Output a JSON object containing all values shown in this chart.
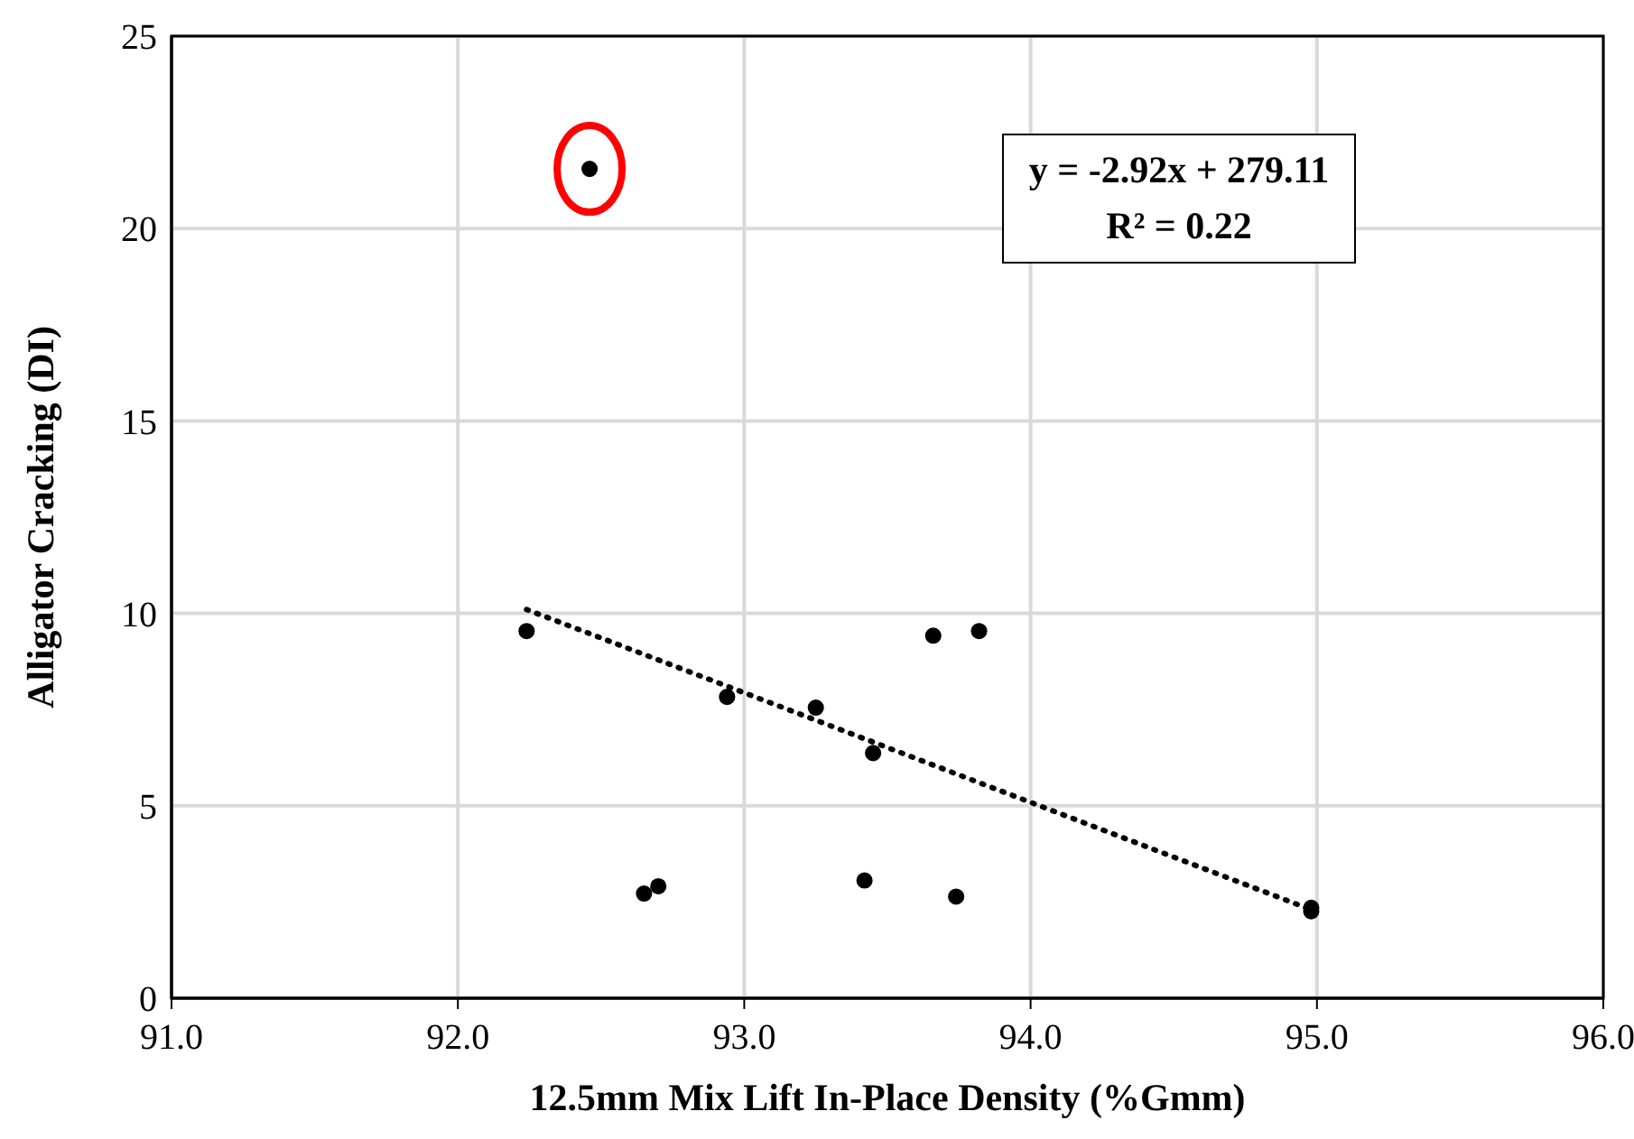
{
  "chart_data": {
    "type": "scatter",
    "xlabel": "12.5mm Mix Lift In-Place Density (%Gmm)",
    "ylabel": "Alligator Cracking (DI)",
    "xlim": [
      91,
      96
    ],
    "xticks": [
      {
        "value": 91,
        "label": "91.0"
      },
      {
        "value": 92,
        "label": "92.0"
      },
      {
        "value": 93,
        "label": "93.0"
      },
      {
        "value": 94,
        "label": "94.0"
      },
      {
        "value": 95,
        "label": "95.0"
      },
      {
        "value": 96,
        "label": "96.0"
      }
    ],
    "ylim": [
      0,
      25
    ],
    "yticks": [
      0,
      5,
      10,
      15,
      20,
      25
    ],
    "grid": true,
    "legend": false,
    "marker": "circle",
    "series": [
      {
        "color": "#000000",
        "x": [
          92.46,
          92.24,
          92.94,
          93.25,
          93.45,
          93.66,
          93.82,
          92.65,
          92.7,
          93.42,
          93.74,
          94.98,
          94.98
        ],
        "values": [
          21.55,
          9.54,
          7.83,
          7.55,
          6.37,
          9.42,
          9.54,
          2.72,
          2.91,
          3.06,
          2.64,
          2.35,
          2.26
        ]
      },
      {
        "type": "line",
        "color": "#000000",
        "line_style": "dotted",
        "marker": "none",
        "x": [
          92.24,
          94.98
        ],
        "values": [
          10.1,
          2.3
        ]
      }
    ],
    "annotations": [
      "y = -2.92x + 279.11",
      "R² = 0.22"
    ]
  }
}
